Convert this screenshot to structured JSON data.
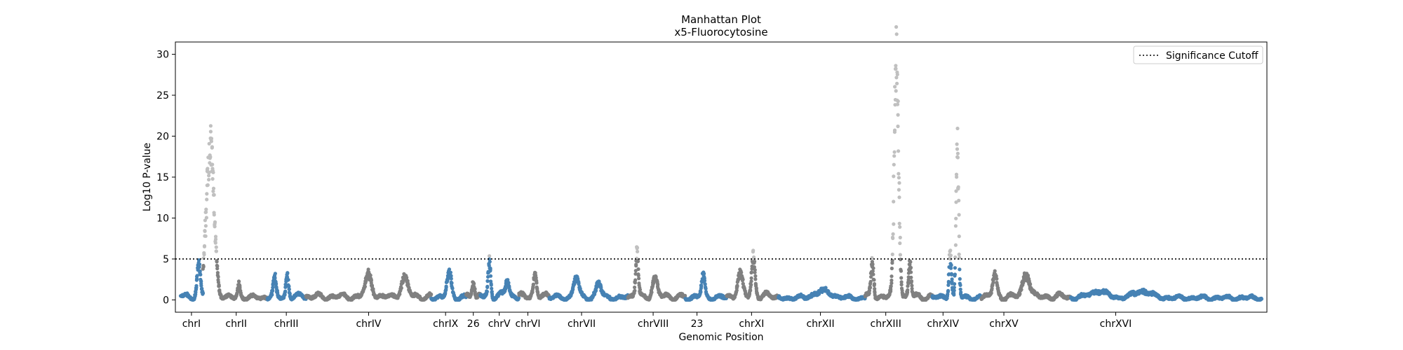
{
  "chart_data": {
    "type": "scatter",
    "title": "Manhattan Plot",
    "subtitle": "x5-Fluorocytosine",
    "xlabel": "Genomic Position",
    "ylabel": "Log10 P-value",
    "ylim": [
      -1.5,
      31.5
    ],
    "xlim": [
      -6,
      1214
    ],
    "yticks": [
      0,
      5,
      10,
      15,
      20,
      25,
      30
    ],
    "grid": false,
    "legend": {
      "position": "top-right",
      "entries": [
        {
          "label": "Significance Cutoff",
          "style": "dotted"
        }
      ]
    },
    "significance_cutoff": 5,
    "colors": {
      "odd": "#4682b4",
      "even": "#808080",
      "significant": "#c0c0c0"
    },
    "chromosomes": [
      {
        "label": "chrI",
        "start": 0,
        "end": 25,
        "tick": 12,
        "base": 0.9,
        "peaks": [
          [
            20,
            3.6,
            4
          ]
        ]
      },
      {
        "label": "chrII",
        "start": 25,
        "end": 97,
        "tick": 62,
        "base": 0.6,
        "peaks": [
          [
            8,
            18.5,
            9
          ],
          [
            40,
            1.6,
            3
          ]
        ]
      },
      {
        "label": "chrIII",
        "start": 97,
        "end": 140,
        "tick": 118,
        "base": 0.8,
        "peaks": [
          [
            8,
            2.2,
            3
          ],
          [
            22,
            2.6,
            3
          ]
        ]
      },
      {
        "label": "chrIV",
        "start": 140,
        "end": 280,
        "tick": 210,
        "base": 0.8,
        "peaks": [
          [
            70,
            2.5,
            8
          ],
          [
            110,
            2.2,
            8
          ]
        ]
      },
      {
        "label": "chrIX",
        "start": 280,
        "end": 319,
        "tick": 296,
        "base": 0.7,
        "peaks": [
          [
            20,
            3.0,
            5
          ]
        ]
      },
      {
        "label": "26",
        "start": 319,
        "end": 335,
        "tick": 327,
        "base": 0.9,
        "peaks": [
          [
            8,
            2.0,
            3
          ]
        ]
      },
      {
        "label": "chrV",
        "start": 335,
        "end": 378,
        "tick": 356,
        "base": 1.0,
        "peaks": [
          [
            10,
            4.2,
            3
          ],
          [
            30,
            2.0,
            4
          ]
        ]
      },
      {
        "label": "chrVI",
        "start": 378,
        "end": 412,
        "tick": 388,
        "base": 0.8,
        "peaks": [
          [
            18,
            2.6,
            4
          ]
        ]
      },
      {
        "label": "chrVII",
        "start": 412,
        "end": 500,
        "tick": 448,
        "base": 0.6,
        "peaks": [
          [
            30,
            2.5,
            6
          ],
          [
            55,
            1.8,
            6
          ]
        ]
      },
      {
        "label": "chrVIII",
        "start": 500,
        "end": 564,
        "tick": 528,
        "base": 0.8,
        "peaks": [
          [
            10,
            5.5,
            3
          ],
          [
            30,
            2.2,
            6
          ]
        ]
      },
      {
        "label": "23",
        "start": 564,
        "end": 610,
        "tick": 577,
        "base": 0.6,
        "peaks": [
          [
            20,
            2.8,
            4
          ]
        ]
      },
      {
        "label": "chrXI",
        "start": 610,
        "end": 668,
        "tick": 638,
        "base": 0.9,
        "peaks": [
          [
            30,
            4.8,
            4
          ],
          [
            15,
            2.6,
            6
          ]
        ]
      },
      {
        "label": "chrXII",
        "start": 668,
        "end": 765,
        "tick": 715,
        "base": 0.5,
        "peaks": [
          [
            50,
            0.8,
            20
          ]
        ]
      },
      {
        "label": "chrXIII",
        "start": 765,
        "end": 840,
        "tick": 788,
        "base": 0.8,
        "peaks": [
          [
            8,
            4.5,
            3
          ],
          [
            35,
            30.0,
            5
          ],
          [
            50,
            4.0,
            3
          ]
        ]
      },
      {
        "label": "chrXIV",
        "start": 840,
        "end": 895,
        "tick": 852,
        "base": 0.6,
        "peaks": [
          [
            20,
            5.2,
            3
          ],
          [
            28,
            18.0,
            3
          ]
        ]
      },
      {
        "label": "chrXV",
        "start": 895,
        "end": 995,
        "tick": 920,
        "base": 0.8,
        "peaks": [
          [
            15,
            2.6,
            5
          ],
          [
            50,
            2.8,
            8
          ]
        ]
      },
      {
        "label": "chrXVI",
        "start": 995,
        "end": 1208,
        "tick": 1045,
        "base": 0.5,
        "peaks": [
          [
            30,
            0.8,
            20
          ],
          [
            80,
            0.8,
            20
          ]
        ]
      }
    ]
  }
}
